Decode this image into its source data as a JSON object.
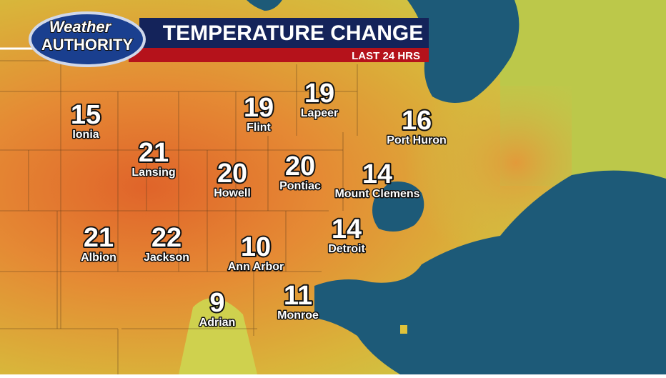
{
  "header": {
    "logo_top": "Weather",
    "logo_bottom": "AUTHORITY",
    "title": "TEMPERATURE CHANGE",
    "subtitle": "LAST 24 HRS"
  },
  "cities": [
    {
      "name": "Ionia",
      "value": 15
    },
    {
      "name": "Lansing",
      "value": 21
    },
    {
      "name": "Flint",
      "value": 19
    },
    {
      "name": "Lapeer",
      "value": 19
    },
    {
      "name": "Port Huron",
      "value": 16
    },
    {
      "name": "Howell",
      "value": 20
    },
    {
      "name": "Pontiac",
      "value": 20
    },
    {
      "name": "Mount Clemens",
      "value": 14
    },
    {
      "name": "Albion",
      "value": 21
    },
    {
      "name": "Jackson",
      "value": 22
    },
    {
      "name": "Ann Arbor",
      "value": 10
    },
    {
      "name": "Detroit",
      "value": 14
    },
    {
      "name": "Adrian",
      "value": 9
    },
    {
      "name": "Monroe",
      "value": 11
    }
  ]
}
